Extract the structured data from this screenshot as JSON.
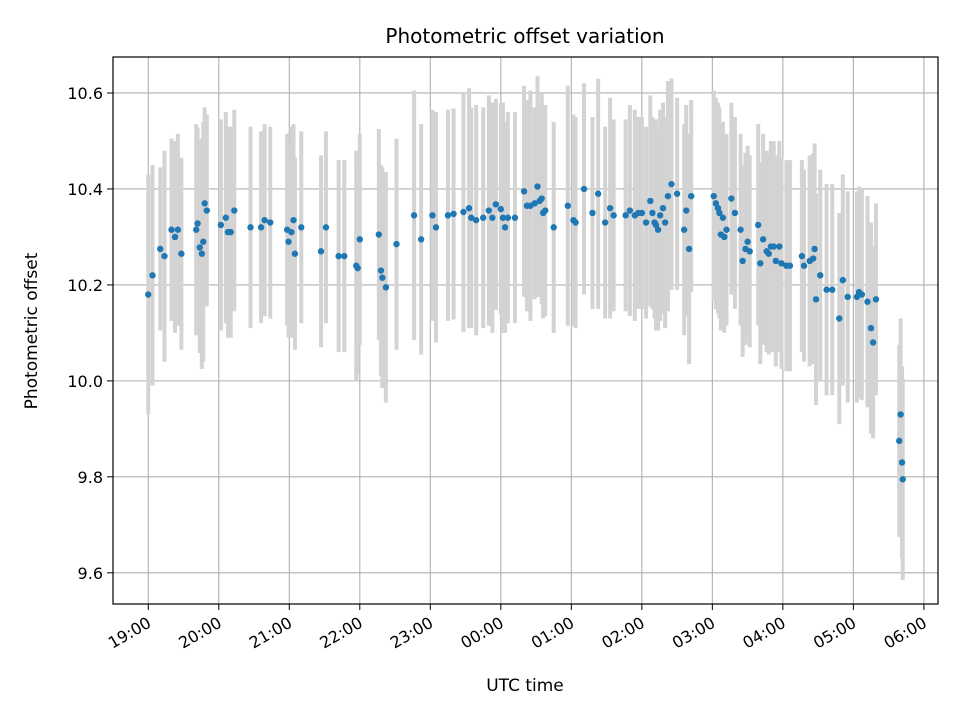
{
  "chart_data": {
    "type": "scatter",
    "title": "Photometric offset variation",
    "xlabel": "UTC time",
    "ylabel": "Photometric offset",
    "xlim": [
      -0.5,
      11.2
    ],
    "ylim": [
      9.535,
      10.675
    ],
    "grid": true,
    "x_ticks": [
      {
        "value": 0,
        "label": "19:00"
      },
      {
        "value": 1,
        "label": "20:00"
      },
      {
        "value": 2,
        "label": "21:00"
      },
      {
        "value": 3,
        "label": "22:00"
      },
      {
        "value": 4,
        "label": "23:00"
      },
      {
        "value": 5,
        "label": "00:00"
      },
      {
        "value": 6,
        "label": "01:00"
      },
      {
        "value": 7,
        "label": "02:00"
      },
      {
        "value": 8,
        "label": "03:00"
      },
      {
        "value": 9,
        "label": "04:00"
      },
      {
        "value": 10,
        "label": "05:00"
      },
      {
        "value": 11,
        "label": "06:00"
      }
    ],
    "y_ticks": [
      {
        "value": 9.6,
        "label": "9.6"
      },
      {
        "value": 9.8,
        "label": "9.8"
      },
      {
        "value": 10.0,
        "label": "10.0"
      },
      {
        "value": 10.2,
        "label": "10.2"
      },
      {
        "value": 10.4,
        "label": "10.4"
      },
      {
        "value": 10.6,
        "label": "10.6"
      }
    ],
    "colors": {
      "marker": "#1f77b4",
      "errorbar": "#d3d3d3",
      "grid": "#b0b0b0"
    },
    "series": [
      {
        "name": "offset",
        "points": [
          [
            0.0,
            10.18,
            0.25
          ],
          [
            0.06,
            10.22,
            0.23
          ],
          [
            0.17,
            10.275,
            0.17
          ],
          [
            0.23,
            10.26,
            0.22
          ],
          [
            0.33,
            10.315,
            0.19
          ],
          [
            0.38,
            10.3,
            0.2
          ],
          [
            0.42,
            10.315,
            0.2
          ],
          [
            0.47,
            10.265,
            0.2
          ],
          [
            0.68,
            10.315,
            0.22
          ],
          [
            0.7,
            10.328,
            0.2
          ],
          [
            0.73,
            10.278,
            0.22
          ],
          [
            0.76,
            10.265,
            0.24
          ],
          [
            0.78,
            10.29,
            0.25
          ],
          [
            0.8,
            10.37,
            0.2
          ],
          [
            0.83,
            10.355,
            0.2
          ],
          [
            1.03,
            10.325,
            0.22
          ],
          [
            1.1,
            10.34,
            0.22
          ],
          [
            1.13,
            10.31,
            0.22
          ],
          [
            1.17,
            10.31,
            0.22
          ],
          [
            1.22,
            10.355,
            0.21
          ],
          [
            1.45,
            10.32,
            0.21
          ],
          [
            1.6,
            10.32,
            0.2
          ],
          [
            1.65,
            10.335,
            0.2
          ],
          [
            1.73,
            10.33,
            0.2
          ],
          [
            1.97,
            10.315,
            0.2
          ],
          [
            1.99,
            10.29,
            0.2
          ],
          [
            2.03,
            10.31,
            0.22
          ],
          [
            2.06,
            10.335,
            0.2
          ],
          [
            2.08,
            10.265,
            0.2
          ],
          [
            2.17,
            10.32,
            0.2
          ],
          [
            2.45,
            10.27,
            0.2
          ],
          [
            2.52,
            10.32,
            0.2
          ],
          [
            2.7,
            10.26,
            0.2
          ],
          [
            2.78,
            10.26,
            0.2
          ],
          [
            2.95,
            10.24,
            0.24
          ],
          [
            2.97,
            10.235,
            0.22
          ],
          [
            3.0,
            10.295,
            0.22
          ],
          [
            3.27,
            10.305,
            0.22
          ],
          [
            3.3,
            10.23,
            0.22
          ],
          [
            3.32,
            10.215,
            0.23
          ],
          [
            3.37,
            10.195,
            0.24
          ],
          [
            3.52,
            10.285,
            0.22
          ],
          [
            3.77,
            10.345,
            0.26
          ],
          [
            3.87,
            10.295,
            0.24
          ],
          [
            4.03,
            10.345,
            0.22
          ],
          [
            4.08,
            10.32,
            0.24
          ],
          [
            4.25,
            10.345,
            0.22
          ],
          [
            4.33,
            10.348,
            0.22
          ],
          [
            4.47,
            10.352,
            0.25
          ],
          [
            4.55,
            10.36,
            0.25
          ],
          [
            4.58,
            10.34,
            0.23
          ],
          [
            4.65,
            10.335,
            0.24
          ],
          [
            4.75,
            10.34,
            0.23
          ],
          [
            4.83,
            10.355,
            0.24
          ],
          [
            4.88,
            10.34,
            0.24
          ],
          [
            4.93,
            10.368,
            0.22
          ],
          [
            5.0,
            10.358,
            0.22
          ],
          [
            5.03,
            10.34,
            0.24
          ],
          [
            5.06,
            10.32,
            0.22
          ],
          [
            5.1,
            10.34,
            0.22
          ],
          [
            5.2,
            10.34,
            0.22
          ],
          [
            5.33,
            10.395,
            0.22
          ],
          [
            5.37,
            10.365,
            0.22
          ],
          [
            5.42,
            10.365,
            0.24
          ],
          [
            5.48,
            10.37,
            0.2
          ],
          [
            5.52,
            10.405,
            0.23
          ],
          [
            5.55,
            10.375,
            0.2
          ],
          [
            5.58,
            10.38,
            0.22
          ],
          [
            5.6,
            10.35,
            0.22
          ],
          [
            5.63,
            10.355,
            0.22
          ],
          [
            5.75,
            10.32,
            0.22
          ],
          [
            5.95,
            10.365,
            0.25
          ],
          [
            6.03,
            10.335,
            0.22
          ],
          [
            6.06,
            10.33,
            0.22
          ],
          [
            6.18,
            10.4,
            0.22
          ],
          [
            6.3,
            10.35,
            0.2
          ],
          [
            6.38,
            10.39,
            0.24
          ],
          [
            6.48,
            10.33,
            0.2
          ],
          [
            6.55,
            10.36,
            0.23
          ],
          [
            6.6,
            10.345,
            0.2
          ],
          [
            6.77,
            10.345,
            0.2
          ],
          [
            6.83,
            10.355,
            0.22
          ],
          [
            6.9,
            10.345,
            0.22
          ],
          [
            6.95,
            10.35,
            0.2
          ],
          [
            7.0,
            10.35,
            0.2
          ],
          [
            7.06,
            10.33,
            0.2
          ],
          [
            7.12,
            10.375,
            0.22
          ],
          [
            7.15,
            10.35,
            0.2
          ],
          [
            7.18,
            10.33,
            0.2
          ],
          [
            7.2,
            10.325,
            0.22
          ],
          [
            7.23,
            10.315,
            0.21
          ],
          [
            7.26,
            10.345,
            0.22
          ],
          [
            7.3,
            10.36,
            0.22
          ],
          [
            7.33,
            10.33,
            0.22
          ],
          [
            7.37,
            10.385,
            0.24
          ],
          [
            7.42,
            10.41,
            0.22
          ],
          [
            7.5,
            10.39,
            0.2
          ],
          [
            7.6,
            10.315,
            0.22
          ],
          [
            7.63,
            10.355,
            0.22
          ],
          [
            7.67,
            10.275,
            0.24
          ],
          [
            7.7,
            10.385,
            0.2
          ],
          [
            8.02,
            10.385,
            0.22
          ],
          [
            8.05,
            10.37,
            0.22
          ],
          [
            8.08,
            10.36,
            0.22
          ],
          [
            8.1,
            10.35,
            0.22
          ],
          [
            8.12,
            10.305,
            0.2
          ],
          [
            8.15,
            10.34,
            0.2
          ],
          [
            8.17,
            10.3,
            0.2
          ],
          [
            8.2,
            10.315,
            0.2
          ],
          [
            8.27,
            10.38,
            0.2
          ],
          [
            8.32,
            10.35,
            0.2
          ],
          [
            8.4,
            10.315,
            0.2
          ],
          [
            8.43,
            10.25,
            0.2
          ],
          [
            8.47,
            10.275,
            0.2
          ],
          [
            8.5,
            10.29,
            0.2
          ],
          [
            8.53,
            10.27,
            0.2
          ],
          [
            8.65,
            10.325,
            0.21
          ],
          [
            8.68,
            10.245,
            0.21
          ],
          [
            8.72,
            10.295,
            0.22
          ],
          [
            8.77,
            10.27,
            0.21
          ],
          [
            8.8,
            10.265,
            0.21
          ],
          [
            8.83,
            10.28,
            0.22
          ],
          [
            8.87,
            10.28,
            0.22
          ],
          [
            8.9,
            10.25,
            0.22
          ],
          [
            8.95,
            10.28,
            0.22
          ],
          [
            8.98,
            10.245,
            0.22
          ],
          [
            9.05,
            10.24,
            0.22
          ],
          [
            9.1,
            10.24,
            0.22
          ],
          [
            9.27,
            10.26,
            0.2
          ],
          [
            9.3,
            10.24,
            0.2
          ],
          [
            9.38,
            10.25,
            0.22
          ],
          [
            9.43,
            10.255,
            0.22
          ],
          [
            9.45,
            10.275,
            0.22
          ],
          [
            9.47,
            10.17,
            0.22
          ],
          [
            9.53,
            10.22,
            0.22
          ],
          [
            9.62,
            10.19,
            0.22
          ],
          [
            9.7,
            10.19,
            0.22
          ],
          [
            9.8,
            10.13,
            0.22
          ],
          [
            9.85,
            10.21,
            0.22
          ],
          [
            9.92,
            10.175,
            0.22
          ],
          [
            10.05,
            10.175,
            0.22
          ],
          [
            10.08,
            10.185,
            0.22
          ],
          [
            10.12,
            10.18,
            0.22
          ],
          [
            10.2,
            10.165,
            0.22
          ],
          [
            10.25,
            10.11,
            0.22
          ],
          [
            10.28,
            10.08,
            0.2
          ],
          [
            10.32,
            10.17,
            0.2
          ],
          [
            10.65,
            9.875,
            0.2
          ],
          [
            10.67,
            9.93,
            0.2
          ],
          [
            10.69,
            9.83,
            0.2
          ],
          [
            10.7,
            9.795,
            0.21
          ]
        ]
      }
    ]
  }
}
